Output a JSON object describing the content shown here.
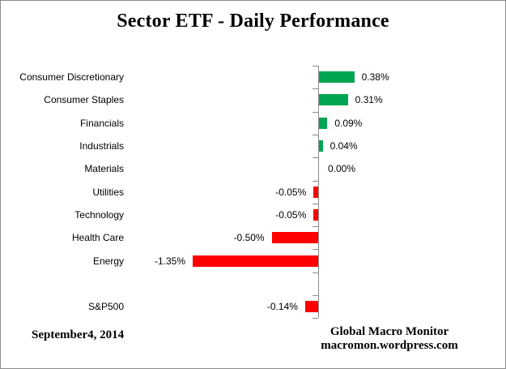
{
  "title": "Sector ETF - Daily Performance",
  "footer": {
    "date": "September4, 2014",
    "source_line1": "Global Macro Monitor",
    "source_line2": "macromon.wordpress.com"
  },
  "colors": {
    "positive_bar": "#00a651",
    "negative_bar": "#ff0000",
    "axis": "#8c8c8c",
    "frame_border": "#8c8c8c",
    "text": "#000000"
  },
  "chart_data": {
    "type": "bar",
    "orientation": "horizontal",
    "title": "Sector ETF - Daily Performance",
    "value_unit": "%",
    "grid": false,
    "data_labels": "outside-end",
    "baseline_axis_visible": true,
    "category_axis_side": "left",
    "rows": [
      {
        "category": "Consumer Discretionary",
        "value": 0.38,
        "label": "0.38%"
      },
      {
        "category": "Consumer Staples",
        "value": 0.31,
        "label": "0.31%"
      },
      {
        "category": "Financials",
        "value": 0.09,
        "label": "0.09%"
      },
      {
        "category": "Industrials",
        "value": 0.04,
        "label": "0.04%"
      },
      {
        "category": "Materials",
        "value": 0.0,
        "label": "0.00%"
      },
      {
        "category": "Utilities",
        "value": -0.05,
        "label": "-0.05%"
      },
      {
        "category": "Technology",
        "value": -0.05,
        "label": "-0.05%"
      },
      {
        "category": "Health Care",
        "value": -0.5,
        "label": "-0.50%"
      },
      {
        "category": "Energy",
        "value": -1.35,
        "label": "-1.35%"
      },
      {
        "category": "",
        "value": null,
        "label": "",
        "spacer": true
      },
      {
        "category": "S&P500",
        "value": -0.14,
        "label": "-0.14%"
      }
    ]
  }
}
